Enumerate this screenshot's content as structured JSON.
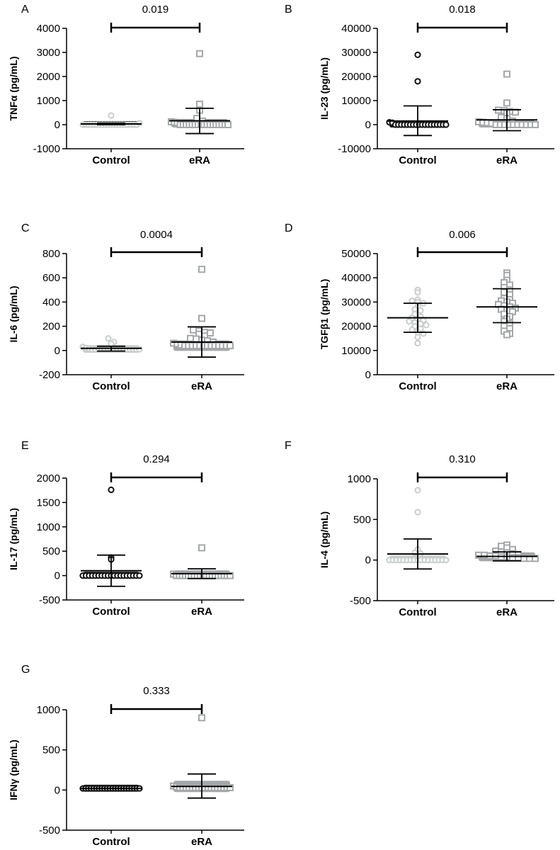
{
  "figure": {
    "categories": [
      "Control",
      "eRA"
    ],
    "colors": {
      "axis": "#000000",
      "control_light": "#c9cdcd",
      "era_gray": "#a4a8aa",
      "dark": "#111111"
    }
  },
  "chart_data": [
    {
      "type": "scatter",
      "panel": "A",
      "ylabel": "TNFα (pg/mL)",
      "pvalue": "0.019",
      "categories": [
        "Control",
        "eRA"
      ],
      "yticks": [
        -1000,
        0,
        1000,
        2000,
        3000,
        4000
      ],
      "ylim": [
        -1000,
        4000
      ],
      "groups": [
        {
          "name": "Control",
          "marker": "circle",
          "color": "#c9cdcd",
          "band_color": "#111111",
          "band": [
            0,
            30
          ],
          "values": [
            0,
            0,
            0,
            0,
            0,
            0,
            0,
            0,
            0,
            0,
            0,
            0,
            0,
            0,
            0,
            0,
            0,
            0,
            0,
            0,
            380,
            60
          ],
          "mean": 30,
          "sd_low": 0,
          "sd_high": 60
        },
        {
          "name": "eRA",
          "marker": "square",
          "color": "#a4a8aa",
          "band_color": "#a4a8aa",
          "band": [
            0,
            120
          ],
          "values": [
            2950,
            850,
            600,
            260,
            150,
            120,
            100,
            80,
            0,
            0,
            0,
            0,
            0,
            0,
            0,
            0,
            0,
            0,
            0,
            0,
            0,
            0,
            0,
            0,
            0
          ],
          "mean": 160,
          "sd_low": -370,
          "sd_high": 680
        }
      ]
    },
    {
      "type": "scatter",
      "panel": "B",
      "ylabel": "IL-23 (pg/mL)",
      "pvalue": "0.018",
      "categories": [
        "Control",
        "eRA"
      ],
      "yticks": [
        -10000,
        0,
        10000,
        20000,
        30000,
        40000
      ],
      "ylim": [
        -10000,
        40000
      ],
      "groups": [
        {
          "name": "Control",
          "marker": "circle",
          "color": "#111111",
          "band_color": "#111111",
          "band": [
            0,
            300
          ],
          "values": [
            29000,
            18000,
            1000,
            800,
            0,
            0,
            0,
            0,
            0,
            0,
            0,
            0,
            0,
            0,
            0,
            0,
            0,
            0,
            0,
            0,
            0,
            0
          ],
          "mean": 1500,
          "sd_low": -4500,
          "sd_high": 7800
        },
        {
          "name": "eRA",
          "marker": "square",
          "color": "#a4a8aa",
          "band_color": "#a4a8aa",
          "band": [
            0,
            600
          ],
          "values": [
            21000,
            9000,
            6000,
            5800,
            5500,
            5200,
            5000,
            3000,
            2500,
            1500,
            1200,
            1000,
            800,
            500,
            0,
            0,
            0,
            0,
            0,
            0,
            0,
            0,
            0,
            0
          ],
          "mean": 2000,
          "sd_low": -2500,
          "sd_high": 6200
        }
      ]
    },
    {
      "type": "scatter",
      "panel": "C",
      "ylabel": "IL-6 (pg/mL)",
      "pvalue": "0.0004",
      "categories": [
        "Control",
        "eRA"
      ],
      "yticks": [
        -200,
        0,
        200,
        400,
        600,
        800
      ],
      "ylim": [
        -200,
        800
      ],
      "groups": [
        {
          "name": "Control",
          "marker": "circle",
          "color": "#c9cdcd",
          "band_color": "#c9cdcd",
          "band": [
            5,
            20
          ],
          "values": [
            100,
            70,
            55,
            30,
            20,
            15,
            10,
            10,
            10,
            10,
            10,
            10,
            10,
            10,
            10,
            10,
            10,
            10,
            10,
            10,
            10,
            10
          ],
          "mean": 18,
          "sd_low": -5,
          "sd_high": 35
        },
        {
          "name": "eRA",
          "marker": "square",
          "color": "#a4a8aa",
          "band_color": "#a4a8aa",
          "band": [
            20,
            60
          ],
          "values": [
            670,
            265,
            170,
            160,
            150,
            145,
            135,
            120,
            100,
            95,
            85,
            80,
            70,
            60,
            55,
            45,
            40,
            40,
            40,
            40,
            40,
            40,
            40,
            40,
            40,
            40,
            40,
            40,
            40
          ],
          "mean": 70,
          "sd_low": -55,
          "sd_high": 195
        }
      ]
    },
    {
      "type": "scatter",
      "panel": "D",
      "ylabel": "TGFβ1 (pg/mL)",
      "pvalue": "0.006",
      "categories": [
        "Control",
        "eRA"
      ],
      "yticks": [
        0,
        10000,
        20000,
        30000,
        40000,
        50000
      ],
      "ylim": [
        0,
        50000
      ],
      "groups": [
        {
          "name": "Control",
          "marker": "circle",
          "color": "#c9cdcd",
          "band_color": null,
          "band": null,
          "values": [
            35000,
            34000,
            31000,
            30500,
            30000,
            29500,
            28000,
            27000,
            26500,
            25000,
            24000,
            23500,
            23000,
            22500,
            22000,
            21500,
            21000,
            20500,
            20000,
            19000,
            18500,
            17500,
            17000,
            15500,
            13000
          ],
          "mean": 23500,
          "sd_low": 17500,
          "sd_high": 29500
        },
        {
          "name": "eRA",
          "marker": "square",
          "color": "#a4a8aa",
          "band_color": null,
          "band": null,
          "values": [
            42000,
            41000,
            39000,
            38000,
            37000,
            36000,
            35000,
            34000,
            33000,
            31500,
            31000,
            30500,
            30000,
            29500,
            29000,
            28500,
            28000,
            27500,
            27000,
            26500,
            26000,
            25000,
            24000,
            23000,
            22000,
            21000,
            20000,
            19000,
            18000,
            17000,
            16500
          ],
          "mean": 28000,
          "sd_low": 21500,
          "sd_high": 35500
        }
      ]
    },
    {
      "type": "scatter",
      "panel": "E",
      "ylabel": "IL-17 (pg/mL)",
      "pvalue": "0.294",
      "categories": [
        "Control",
        "eRA"
      ],
      "yticks": [
        -500,
        0,
        500,
        1000,
        1500,
        2000
      ],
      "ylim": [
        -500,
        2000
      ],
      "groups": [
        {
          "name": "Control",
          "marker": "circle",
          "color": "#111111",
          "band_color": "#111111",
          "band": [
            0,
            20
          ],
          "values": [
            1760,
            370,
            330,
            0,
            0,
            0,
            0,
            0,
            0,
            0,
            0,
            0,
            0,
            0,
            0,
            0,
            0,
            0,
            0,
            0,
            0,
            0
          ],
          "mean": 100,
          "sd_low": -220,
          "sd_high": 420
        },
        {
          "name": "eRA",
          "marker": "square",
          "color": "#a4a8aa",
          "band_color": "#a4a8aa",
          "band": [
            0,
            50
          ],
          "values": [
            570,
            30,
            0,
            0,
            0,
            0,
            0,
            0,
            0,
            0,
            0,
            0,
            0,
            0,
            0,
            0,
            0,
            0,
            0,
            0,
            0
          ],
          "mean": 40,
          "sd_low": -60,
          "sd_high": 140
        }
      ]
    },
    {
      "type": "scatter",
      "panel": "F",
      "ylabel": "IL-4 (pg/mL)",
      "pvalue": "0.310",
      "categories": [
        "Control",
        "eRA"
      ],
      "yticks": [
        -500,
        0,
        500,
        1000
      ],
      "ylim": [
        -500,
        1000
      ],
      "groups": [
        {
          "name": "Control",
          "marker": "circle",
          "color": "#c9cdcd",
          "band_color": "#c9cdcd",
          "band": [
            0,
            20
          ],
          "values": [
            860,
            590,
            130,
            90,
            80,
            0,
            0,
            0,
            0,
            0,
            0,
            0,
            0,
            0,
            0,
            0,
            0,
            0,
            0,
            0,
            0,
            0
          ],
          "mean": 75,
          "sd_low": -110,
          "sd_high": 260
        },
        {
          "name": "eRA",
          "marker": "square",
          "color": "#a4a8aa",
          "band_color": "#a4a8aa",
          "band": [
            20,
            60
          ],
          "values": [
            185,
            170,
            150,
            130,
            110,
            100,
            90,
            80,
            70,
            60,
            60,
            50,
            50,
            40,
            40,
            30,
            30,
            20,
            20,
            20
          ],
          "mean": 45,
          "sd_low": -10,
          "sd_high": 100
        }
      ]
    },
    {
      "type": "scatter",
      "panel": "G",
      "ylabel": "IFNγ (pg/mL)",
      "pvalue": "0.333",
      "categories": [
        "Control",
        "eRA"
      ],
      "yticks": [
        -500,
        0,
        500,
        1000
      ],
      "ylim": [
        -500,
        1000
      ],
      "groups": [
        {
          "name": "Control",
          "marker": "circle",
          "color": "#111111",
          "band_color": "#111111",
          "band": [
            15,
            30
          ],
          "values": [
            20,
            20,
            20,
            20,
            20,
            20,
            20,
            20,
            20,
            20,
            20,
            20,
            20,
            20,
            20,
            20,
            20,
            20,
            20,
            20,
            20,
            20
          ],
          "mean": 20,
          "sd_low": 20,
          "sd_high": 20
        },
        {
          "name": "eRA",
          "marker": "square",
          "color": "#a4a8aa",
          "band_color": "#a4a8aa",
          "band": [
            10,
            80
          ],
          "values": [
            900,
            50,
            40,
            30,
            30,
            30,
            30,
            30,
            30,
            30,
            30,
            30,
            30,
            30,
            30,
            30,
            30,
            30,
            30,
            30
          ],
          "mean": 45,
          "sd_low": -100,
          "sd_high": 200
        }
      ]
    }
  ]
}
